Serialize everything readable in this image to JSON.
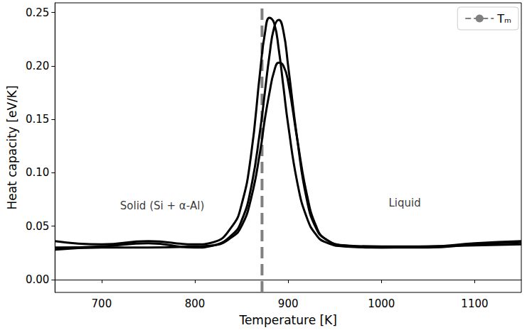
{
  "chart_data": {
    "type": "line",
    "x_label": "Temperature [K]",
    "y_label": "Heat capacity [eV/K]",
    "xlim": [
      650,
      1150
    ],
    "xticks": [
      700,
      800,
      900,
      1000,
      1100
    ],
    "ylim": [
      -0.012,
      0.259
    ],
    "yticks": [
      {
        "value": 0,
        "label": "0.00"
      },
      {
        "value": 0.05,
        "label": "0.05"
      },
      {
        "value": 0.1,
        "label": "0.10"
      },
      {
        "value": 0.15,
        "label": "0.15"
      },
      {
        "value": 0.2,
        "label": "0.20"
      },
      {
        "value": 0.25,
        "label": "0.25"
      }
    ],
    "grid": false,
    "legend": "upper right",
    "x": [
      650,
      700,
      750,
      800,
      820,
      840,
      850,
      860,
      870,
      875,
      880,
      885,
      890,
      895,
      900,
      910,
      920,
      930,
      940,
      960,
      1000,
      1050,
      1100,
      1150
    ],
    "series": [
      {
        "color": "#000000",
        "line_style": "solid",
        "values": [
          0.036,
          0.033,
          0.036,
          0.033,
          0.035,
          0.05,
          0.07,
          0.115,
          0.195,
          0.23,
          0.245,
          0.24,
          0.215,
          0.18,
          0.145,
          0.09,
          0.058,
          0.042,
          0.035,
          0.031,
          0.03,
          0.03,
          0.033,
          0.035
        ]
      },
      {
        "color": "#000000",
        "line_style": "solid",
        "values": [
          0.03,
          0.031,
          0.034,
          0.03,
          0.032,
          0.042,
          0.055,
          0.085,
          0.14,
          0.175,
          0.21,
          0.236,
          0.243,
          0.232,
          0.2,
          0.13,
          0.075,
          0.048,
          0.038,
          0.032,
          0.031,
          0.031,
          0.034,
          0.036
        ]
      },
      {
        "color": "#000000",
        "line_style": "solid",
        "values": [
          0.028,
          0.03,
          0.03,
          0.031,
          0.032,
          0.04,
          0.05,
          0.075,
          0.12,
          0.15,
          0.175,
          0.195,
          0.203,
          0.2,
          0.185,
          0.13,
          0.08,
          0.05,
          0.038,
          0.032,
          0.03,
          0.031,
          0.032,
          0.033
        ]
      }
    ],
    "vlines": [
      {
        "name": "Tₘ",
        "x": 872,
        "color": "#808080",
        "line_style": "dashed"
      }
    ],
    "annotations": [
      {
        "text": "Solid (Si + α-Al)",
        "x": 765,
        "y": 0.069
      },
      {
        "text": "Liquid",
        "x": 1025,
        "y": 0.072
      }
    ]
  }
}
